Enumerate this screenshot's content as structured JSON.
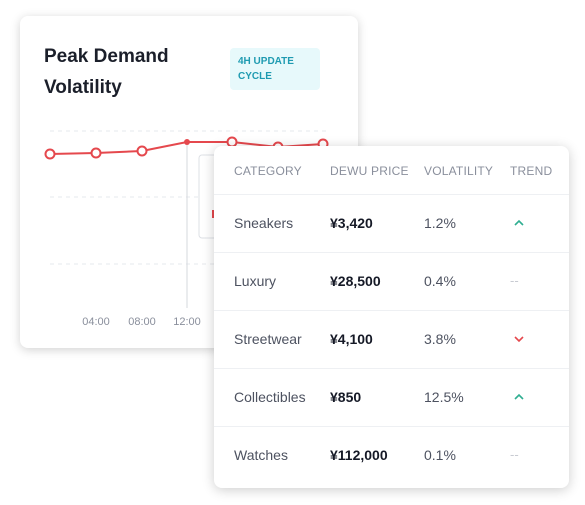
{
  "demand_card": {
    "title": "Peak Demand Volatility",
    "badge": "4H UPDATE CYCLE",
    "accent_color": "#e5484d",
    "x_ticks": [
      "04:00",
      "08:00",
      "12:00"
    ]
  },
  "table": {
    "headers": {
      "category": "CATEGORY",
      "price": "DEWU PRICE",
      "volatility": "VOLATILITY",
      "trend": "TREND"
    },
    "rows": [
      {
        "category": "Sneakers",
        "price": "¥3,420",
        "volatility": "1.2%",
        "trend": "up"
      },
      {
        "category": "Luxury",
        "price": "¥28,500",
        "volatility": "0.4%",
        "trend": "flat",
        "trend_text": "--"
      },
      {
        "category": "Streetwear",
        "price": "¥4,100",
        "volatility": "3.8%",
        "trend": "down"
      },
      {
        "category": "Collectibles",
        "price": "¥850",
        "volatility": "12.5%",
        "trend": "up"
      },
      {
        "category": "Watches",
        "price": "¥112,000",
        "volatility": "0.1%",
        "trend": "flat",
        "trend_text": "--"
      }
    ],
    "colors": {
      "up": "#2fae91",
      "down": "#e5484d"
    }
  }
}
